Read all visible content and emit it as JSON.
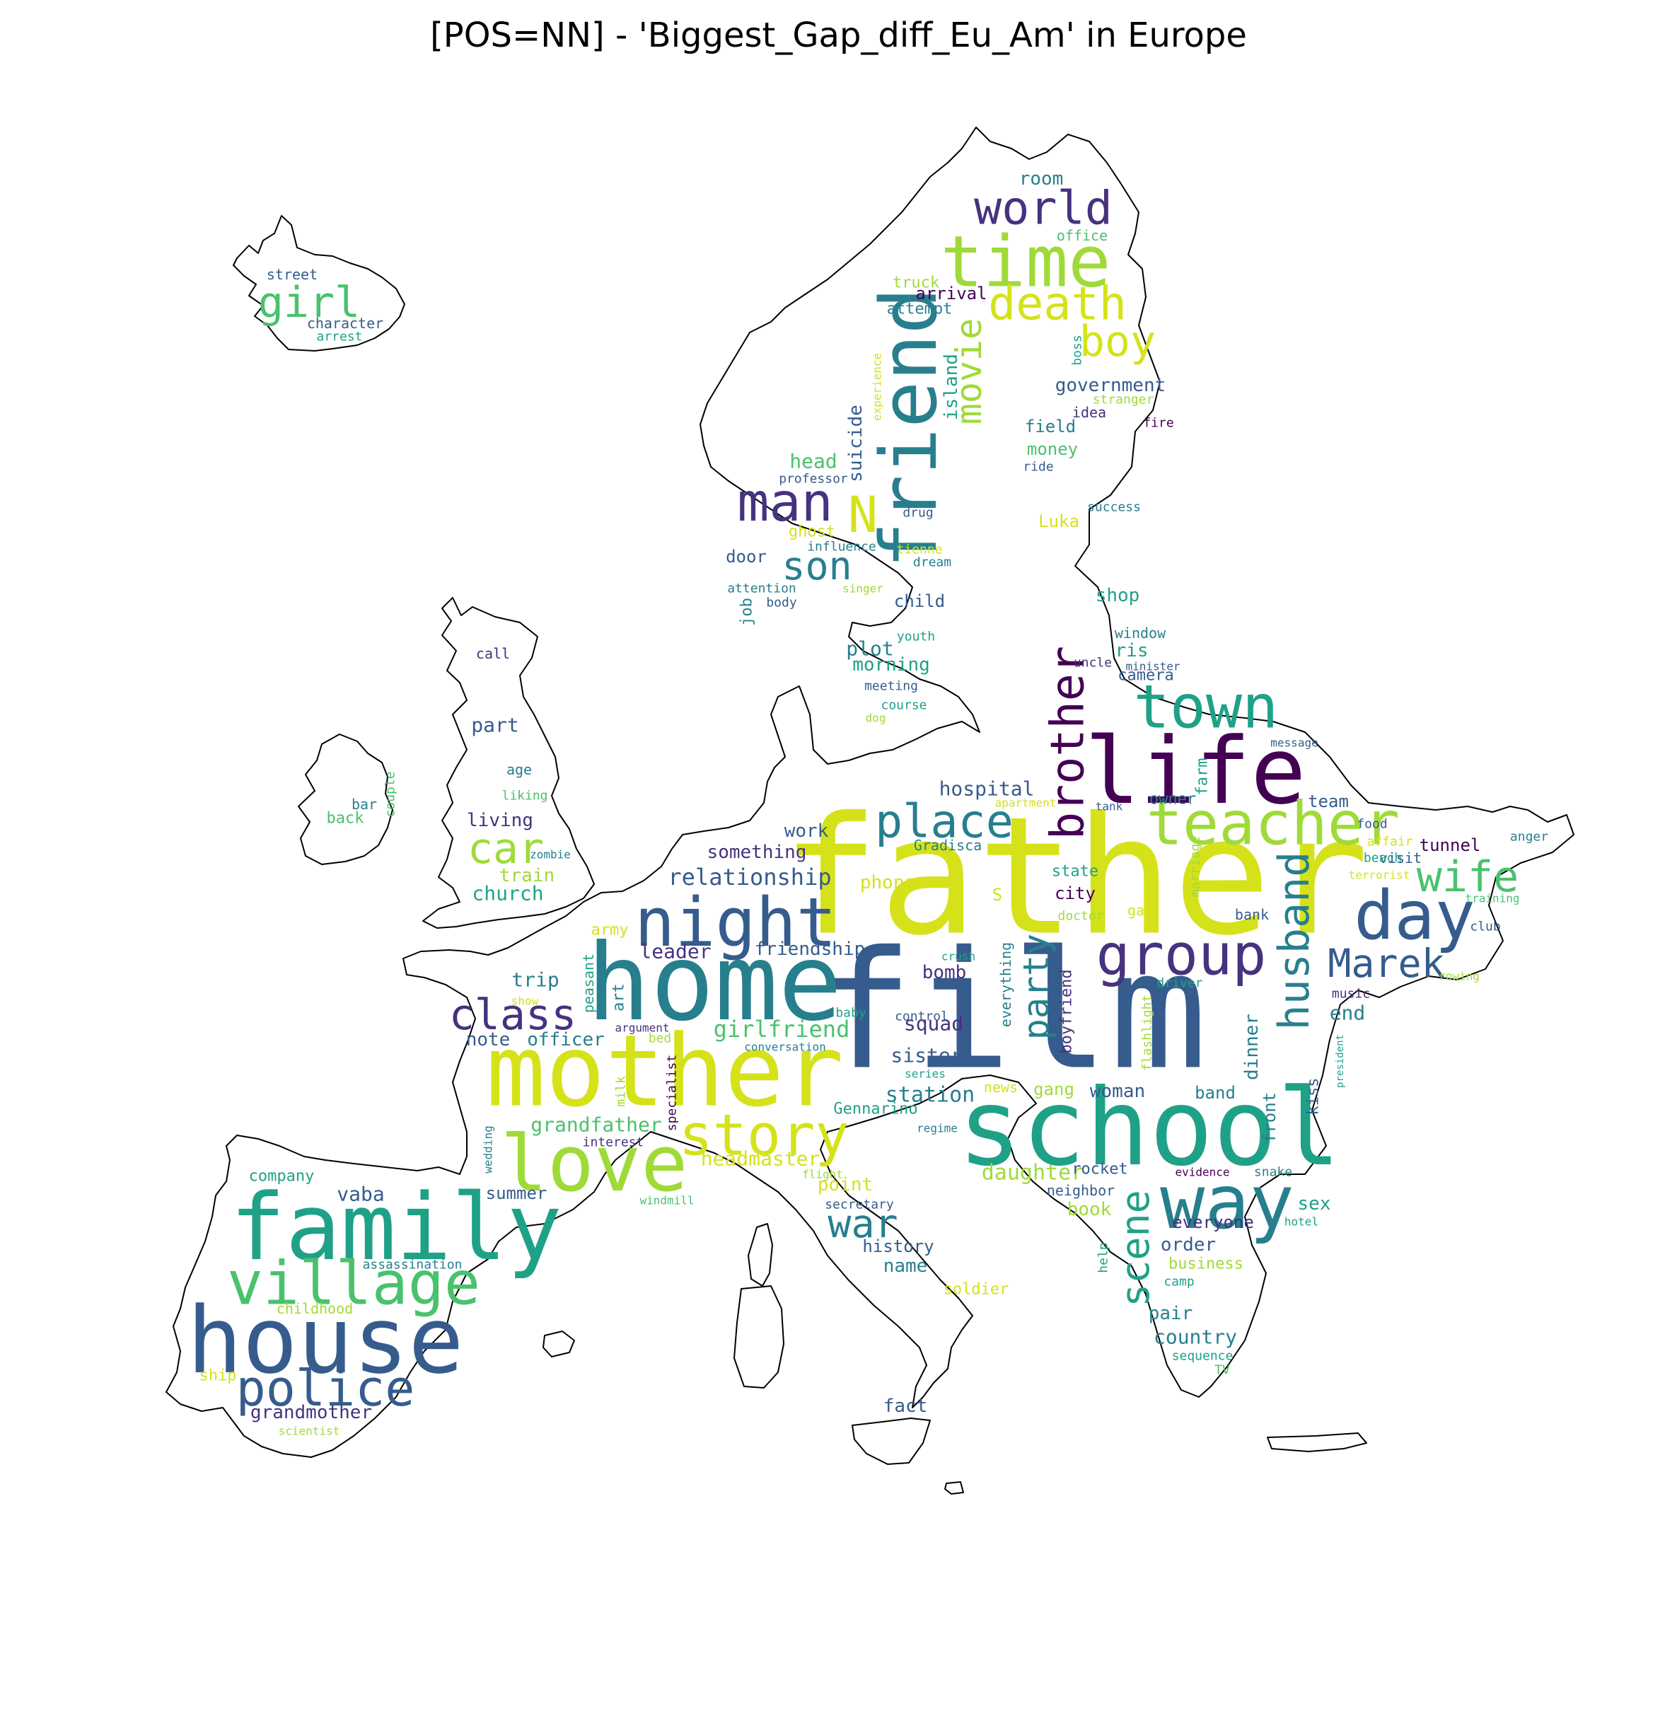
{
  "title": "[POS=NN] - 'Biggest_Gap_diff_Eu_Am' in Europe",
  "palette": [
    "#440154",
    "#46327e",
    "#365c8d",
    "#277f8e",
    "#1fa187",
    "#4ac16d",
    "#a0da39",
    "#d5e21a"
  ],
  "words": [
    {
      "t": "father",
      "c": 7
    },
    {
      "t": "film",
      "c": 2
    },
    {
      "t": "school",
      "c": 4
    },
    {
      "t": "mother",
      "c": 7
    },
    {
      "t": "home",
      "c": 3
    },
    {
      "t": "family",
      "c": 4
    },
    {
      "t": "house",
      "c": 2
    },
    {
      "t": "life",
      "c": 0
    },
    {
      "t": "friend",
      "c": 3
    },
    {
      "t": "time",
      "c": 6
    },
    {
      "t": "love",
      "c": 6
    },
    {
      "t": "night",
      "c": 2
    },
    {
      "t": "day",
      "c": 2
    },
    {
      "t": "way",
      "c": 3
    },
    {
      "t": "village",
      "c": 5
    },
    {
      "t": "teacher",
      "c": 6
    },
    {
      "t": "town",
      "c": 4
    },
    {
      "t": "group",
      "c": 1
    },
    {
      "t": "police",
      "c": 2
    },
    {
      "t": "story",
      "c": 7
    },
    {
      "t": "man",
      "c": 1
    },
    {
      "t": "world",
      "c": 1
    },
    {
      "t": "brother",
      "c": 0
    },
    {
      "t": "place",
      "c": 3
    },
    {
      "t": "class",
      "c": 1
    },
    {
      "t": "husband",
      "c": 3
    },
    {
      "t": "death",
      "c": 7
    },
    {
      "t": "wife",
      "c": 5
    },
    {
      "t": "Marek",
      "c": 2
    },
    {
      "t": "car",
      "c": 6
    },
    {
      "t": "son",
      "c": 3
    },
    {
      "t": "boy",
      "c": 7
    },
    {
      "t": "scene",
      "c": 4
    },
    {
      "t": "N",
      "c": 7
    },
    {
      "t": "girl",
      "c": 5
    },
    {
      "t": "movie",
      "c": 6
    },
    {
      "t": "party",
      "c": 3
    },
    {
      "t": "war",
      "c": 3
    },
    {
      "t": "relationship",
      "c": 2
    },
    {
      "t": "grandfather",
      "c": 5
    },
    {
      "t": "girlfriend",
      "c": 5
    },
    {
      "t": "daughter",
      "c": 6
    },
    {
      "t": "government",
      "c": 2
    },
    {
      "t": "station",
      "c": 3
    },
    {
      "t": "grandmother",
      "c": 1
    },
    {
      "t": "hospital",
      "c": 2
    },
    {
      "t": "something",
      "c": 1
    },
    {
      "t": "headmaster",
      "c": 7
    },
    {
      "t": "leader",
      "c": 1
    },
    {
      "t": "woman",
      "c": 2
    },
    {
      "t": "suicide",
      "c": 2
    },
    {
      "t": "friendship",
      "c": 2
    },
    {
      "t": "country",
      "c": 3
    },
    {
      "t": "squad",
      "c": 1
    },
    {
      "t": "island",
      "c": 4
    },
    {
      "t": "order",
      "c": 2
    },
    {
      "t": "sister",
      "c": 2
    },
    {
      "t": "head",
      "c": 5
    },
    {
      "t": "plot",
      "c": 3
    },
    {
      "t": "morning",
      "c": 4
    },
    {
      "t": "living",
      "c": 1
    },
    {
      "t": "church",
      "c": 4
    },
    {
      "t": "vaba",
      "c": 2
    },
    {
      "t": "work",
      "c": 2
    },
    {
      "t": "dinner",
      "c": 3
    },
    {
      "t": "boyfriend",
      "c": 1
    },
    {
      "t": "trip",
      "c": 3
    },
    {
      "t": "part",
      "c": 2
    },
    {
      "t": "bomb",
      "c": 1
    },
    {
      "t": "end",
      "c": 3
    },
    {
      "t": "note",
      "c": 2
    },
    {
      "t": "officer",
      "c": 3
    },
    {
      "t": "everyone",
      "c": 1
    },
    {
      "t": "point",
      "c": 7
    },
    {
      "t": "name",
      "c": 3
    },
    {
      "t": "book",
      "c": 6
    },
    {
      "t": "phone",
      "c": 7
    },
    {
      "t": "tunnel",
      "c": 0
    },
    {
      "t": "team",
      "c": 2
    },
    {
      "t": "money",
      "c": 5
    },
    {
      "t": "room",
      "c": 3
    },
    {
      "t": "door",
      "c": 2
    },
    {
      "t": "child",
      "c": 2
    },
    {
      "t": "shop",
      "c": 4
    },
    {
      "t": "sex",
      "c": 4
    },
    {
      "t": "Luka",
      "c": 7
    },
    {
      "t": "pair",
      "c": 3
    },
    {
      "t": "owner",
      "c": 3
    },
    {
      "t": "farm",
      "c": 4
    },
    {
      "t": "ris",
      "c": 4
    },
    {
      "t": "camera",
      "c": 2
    },
    {
      "t": "rocket",
      "c": 2
    },
    {
      "t": "band",
      "c": 3
    },
    {
      "t": "city",
      "c": 0
    },
    {
      "t": "everything",
      "c": 3
    },
    {
      "t": "kiss",
      "c": 2
    },
    {
      "t": "front",
      "c": 3
    },
    {
      "t": "gang",
      "c": 6
    },
    {
      "t": "field",
      "c": 3
    },
    {
      "t": "history",
      "c": 2
    },
    {
      "t": "fact",
      "c": 2
    },
    {
      "t": "train",
      "c": 6
    },
    {
      "t": "company",
      "c": 4
    },
    {
      "t": "back",
      "c": 5
    },
    {
      "t": "summer",
      "c": 2
    },
    {
      "t": "job",
      "c": 3
    },
    {
      "t": "call",
      "c": 1
    },
    {
      "t": "state",
      "c": 4
    },
    {
      "t": "childhood",
      "c": 6
    },
    {
      "t": "soldier",
      "c": 7
    },
    {
      "t": "peasant",
      "c": 4
    },
    {
      "t": "art",
      "c": 3
    },
    {
      "t": "bar",
      "c": 3
    },
    {
      "t": "ship",
      "c": 7
    },
    {
      "t": "army",
      "c": 7
    },
    {
      "t": "Gennarino",
      "c": 4
    },
    {
      "t": "arrival",
      "c": 0
    },
    {
      "t": "truck",
      "c": 6
    },
    {
      "t": "attempt",
      "c": 3
    },
    {
      "t": "neighbor",
      "c": 2
    },
    {
      "t": "business",
      "c": 6
    },
    {
      "t": "age",
      "c": 3
    },
    {
      "t": "couple",
      "c": 5
    },
    {
      "t": "street",
      "c": 2
    },
    {
      "t": "character",
      "c": 2
    },
    {
      "t": "office",
      "c": 5
    },
    {
      "t": "ghost",
      "c": 7
    },
    {
      "t": "bank",
      "c": 2
    },
    {
      "t": "window",
      "c": 3
    },
    {
      "t": "bed",
      "c": 6
    },
    {
      "t": "idea",
      "c": 1
    },
    {
      "t": "news",
      "c": 7
    },
    {
      "t": "visit",
      "c": 2
    },
    {
      "t": "helpflashlight",
      "c": 6
    },
    {
      "t": "help",
      "c": 4
    },
    {
      "t": "flashlight",
      "c": 6
    },
    {
      "t": "S",
      "c": 7
    },
    {
      "t": "marriage",
      "c": 6
    },
    {
      "t": "gas",
      "c": 7
    },
    {
      "t": "Gradisca",
      "c": 3
    },
    {
      "t": "milk",
      "c": 6
    },
    {
      "t": "specialist",
      "c": 0
    },
    {
      "t": "wedding",
      "c": 3
    },
    {
      "t": "dream",
      "c": 3
    },
    {
      "t": "tienne",
      "c": 7
    },
    {
      "t": "drug",
      "c": 2
    },
    {
      "t": "success",
      "c": 3
    },
    {
      "t": "ride",
      "c": 2
    },
    {
      "t": "fire",
      "c": 0
    },
    {
      "t": "stranger",
      "c": 6
    },
    {
      "t": "boss",
      "c": 4
    },
    {
      "t": "experience",
      "c": 7
    },
    {
      "t": "professor",
      "c": 2
    },
    {
      "t": "influence",
      "c": 3
    },
    {
      "t": "attention",
      "c": 3
    },
    {
      "t": "body",
      "c": 2
    },
    {
      "t": "singer",
      "c": 6
    },
    {
      "t": "youth",
      "c": 4
    },
    {
      "t": "uncle",
      "c": 1
    },
    {
      "t": "minister",
      "c": 2
    },
    {
      "t": "meeting",
      "c": 2
    },
    {
      "t": "course",
      "c": 4
    },
    {
      "t": "dog",
      "c": 6
    },
    {
      "t": "message",
      "c": 2
    },
    {
      "t": "liking",
      "c": 5
    },
    {
      "t": "zombie",
      "c": 3
    },
    {
      "t": "tank",
      "c": 2
    },
    {
      "t": "apartment",
      "c": 7
    },
    {
      "t": "food",
      "c": 2
    },
    {
      "t": "affair",
      "c": 7
    },
    {
      "t": "anger",
      "c": 3
    },
    {
      "t": "terrorist",
      "c": 7
    },
    {
      "t": "beach",
      "c": 4
    },
    {
      "t": "training",
      "c": 5
    },
    {
      "t": "club",
      "c": 2
    },
    {
      "t": "doctor",
      "c": 6
    },
    {
      "t": "rowing",
      "c": 6
    },
    {
      "t": "driver",
      "c": 4
    },
    {
      "t": "music",
      "c": 1
    },
    {
      "t": "crush",
      "c": 4
    },
    {
      "t": "show",
      "c": 7
    },
    {
      "t": "baby",
      "c": 4
    },
    {
      "t": "control",
      "c": 2
    },
    {
      "t": "argument",
      "c": 1
    },
    {
      "t": "conversation",
      "c": 3
    },
    {
      "t": "series",
      "c": 4
    },
    {
      "t": "president",
      "c": 4
    },
    {
      "t": "regime",
      "c": 3
    },
    {
      "t": "interest",
      "c": 1
    },
    {
      "t": "flight",
      "c": 6
    },
    {
      "t": "windmill",
      "c": 5
    },
    {
      "t": "evidence",
      "c": 0
    },
    {
      "t": "snake",
      "c": 3
    },
    {
      "t": "hotel",
      "c": 4
    },
    {
      "t": "secretary",
      "c": 2
    },
    {
      "t": "camp",
      "c": 4
    },
    {
      "t": "assassination",
      "c": 3
    },
    {
      "t": "sequence",
      "c": 4
    },
    {
      "t": "TV",
      "c": 5
    },
    {
      "t": "scientist",
      "c": 6
    },
    {
      "t": "arrest",
      "c": 4
    }
  ]
}
